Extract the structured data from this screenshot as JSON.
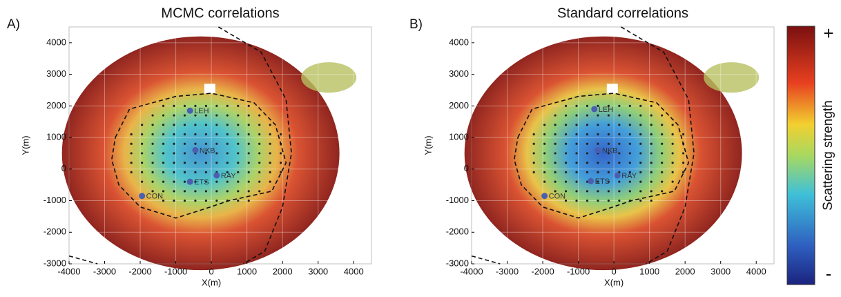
{
  "chart_data": [
    {
      "type": "map",
      "panel_label": "A)",
      "title": "MCMC correlations",
      "x_label": "X(m)",
      "y_label": "Y(m)",
      "xlim": [
        -4000,
        4500
      ],
      "ylim": [
        -3000,
        4500
      ],
      "xticks": [
        -4000,
        -3000,
        -2000,
        -1000,
        0,
        1000,
        2000,
        3000,
        4000
      ],
      "yticks": [
        -3000,
        -2000,
        -1000,
        0,
        1000,
        2000,
        3000,
        4000
      ],
      "grid": true,
      "station_color": "#4a5fb0",
      "stations": {
        "names": [
          "LEH",
          "NKB",
          "RAY",
          "ETS",
          "CON"
        ],
        "x": [
          -600,
          -450,
          150,
          -600,
          -1950
        ],
        "y": [
          1850,
          600,
          -200,
          -400,
          -850
        ]
      }
    },
    {
      "type": "map",
      "panel_label": "B)",
      "title": "Standard correlations",
      "x_label": "X(m)",
      "y_label": "Y(m)",
      "xlim": [
        -4000,
        4500
      ],
      "ylim": [
        -3000,
        4500
      ],
      "xticks": [
        -4000,
        -3000,
        -2000,
        -1000,
        0,
        1000,
        2000,
        3000,
        4000
      ],
      "yticks": [
        -3000,
        -2000,
        -1000,
        0,
        1000,
        2000,
        3000,
        4000
      ],
      "grid": true,
      "station_color": "#4a5fb0",
      "stations": {
        "names": [
          "LEH",
          "NKB",
          "RAY",
          "ETS",
          "CON"
        ],
        "x": [
          -550,
          -450,
          100,
          -650,
          -1950
        ],
        "y": [
          1900,
          600,
          -200,
          -380,
          -850
        ]
      }
    }
  ],
  "colorbar": {
    "label": "Scattering strength",
    "max_label": "+",
    "min_label": "-"
  }
}
